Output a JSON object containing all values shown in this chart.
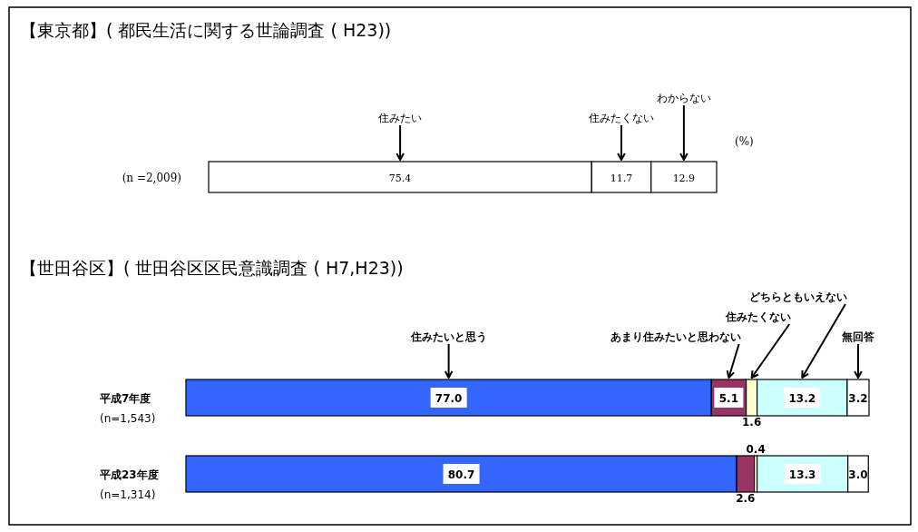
{
  "chart_data": [
    {
      "type": "bar",
      "title": "【東京都】( 都民生活に関する世論調査 ( H23))",
      "orientation": "horizontal",
      "stacked": true,
      "categories": [
        "(n =2,009)"
      ],
      "series": [
        {
          "name": "住みたい",
          "color": "#ffffff",
          "values": [
            75.4
          ],
          "value_labels": [
            "75.4"
          ]
        },
        {
          "name": "住みたくない",
          "color": "#ffffff",
          "values": [
            11.7
          ],
          "value_labels": [
            "11.7"
          ]
        },
        {
          "name": "わからない",
          "color": "#ffffff",
          "values": [
            12.9
          ],
          "value_labels": [
            "12.9"
          ]
        }
      ],
      "annotations": [
        "(%)"
      ]
    },
    {
      "type": "bar",
      "title": "【世田谷区】( 世田谷区区民意識調査 ( H7,H23))",
      "orientation": "horizontal",
      "stacked": true,
      "categories": [
        "平成7年度\n(n=1,543)",
        "平成23年度\n(n=1,314)"
      ],
      "series": [
        {
          "name": "住みたいと思う",
          "color": "#3366ff",
          "values": [
            77.0,
            80.7
          ],
          "value_labels": [
            "77.0",
            "80.7"
          ]
        },
        {
          "name": "あまり住みたいと思わない",
          "color": "#993366",
          "values": [
            5.1,
            2.6
          ],
          "value_labels": [
            "5.1",
            "2.6"
          ]
        },
        {
          "name": "住みたくない",
          "color": "#ffffcc",
          "values": [
            1.6,
            0.4
          ],
          "value_labels": [
            "1.6",
            "0.4"
          ]
        },
        {
          "name": "どちらともいえない",
          "color": "#ccffff",
          "values": [
            13.2,
            13.3
          ],
          "value_labels": [
            "13.2",
            "13.3"
          ]
        },
        {
          "name": "無回答",
          "color": "#ffffff",
          "values": [
            3.2,
            3.0
          ],
          "value_labels": [
            "3.2",
            "3.0"
          ]
        }
      ]
    }
  ]
}
